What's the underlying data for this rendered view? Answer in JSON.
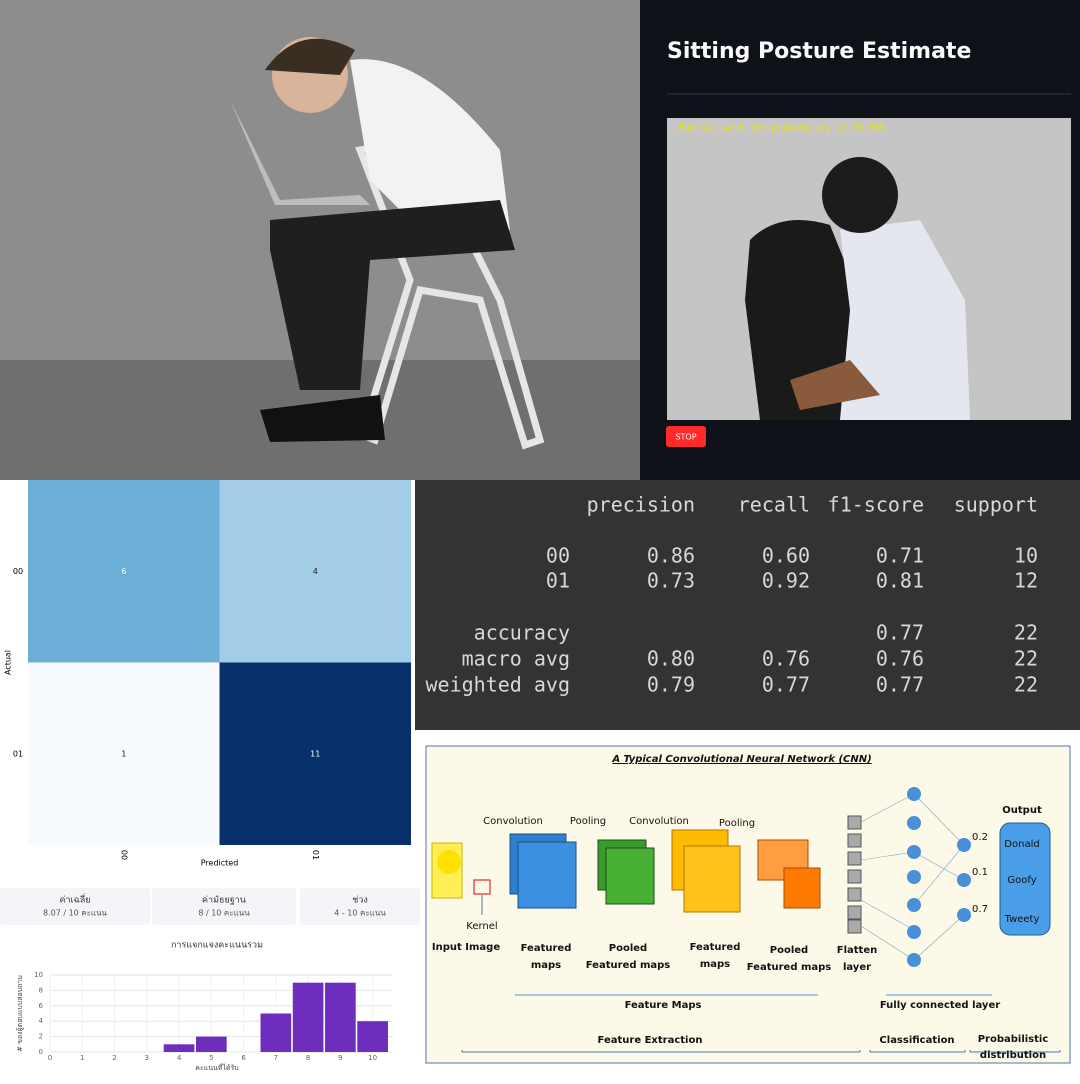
{
  "app": {
    "title": "Sitting Posture Estimate",
    "overlay_text": "Bad sit with the probability of 78.53%",
    "button": "STOP"
  },
  "chart_data": [
    {
      "type": "heatmap",
      "x_label": "Predicted",
      "y_label": "Actual",
      "x_categories": [
        "00",
        "01"
      ],
      "y_categories": [
        "00",
        "01"
      ],
      "values": [
        [
          6,
          4
        ],
        [
          1,
          11
        ]
      ],
      "colormap": [
        "#f7fbff",
        "#6baed6",
        "#08306b"
      ]
    },
    {
      "type": "bar",
      "title": "การแจกแจงคะแนนรวม",
      "x_label": "คะแนนที่ได้รับ",
      "y_label": "# ของผู้ตอบแบบสอบถาม",
      "x": [
        4,
        5,
        7,
        8,
        9,
        10
      ],
      "values": [
        1,
        2,
        5,
        9,
        9,
        4
      ],
      "color": "#6f2dbd",
      "xlim": [
        0,
        10.6
      ],
      "xticks": [
        0,
        1,
        2,
        3,
        4,
        5,
        6,
        7,
        8,
        9,
        10
      ],
      "ylim": [
        0,
        10
      ],
      "yticks": [
        0,
        2,
        4,
        6,
        8,
        10
      ],
      "grid": true
    }
  ],
  "stats": [
    {
      "label": "ค่าเฉลี่ย",
      "value": "8.07 / 10 คะแนน"
    },
    {
      "label": "ค่ามัธยฐาน",
      "value": "8 / 10 คะแนน"
    },
    {
      "label": "ช่วง",
      "value": "4 - 10 คะแนน"
    }
  ],
  "report": {
    "header": [
      "precision",
      "recall",
      "f1-score",
      "support"
    ],
    "rows": [
      [
        "00",
        "0.86",
        "0.60",
        "0.71",
        "10"
      ],
      [
        "01",
        "0.73",
        "0.92",
        "0.81",
        "12"
      ],
      [
        "accuracy",
        "",
        "",
        "0.77",
        "22"
      ],
      [
        "macro avg",
        "0.80",
        "0.76",
        "0.76",
        "22"
      ],
      [
        "weighted avg",
        "0.79",
        "0.77",
        "0.77",
        "22"
      ]
    ]
  },
  "cnn": {
    "title": "A Typical Convolutional Neural Network (CNN)",
    "conv1": "Convolution",
    "pool1": "Pooling",
    "conv2": "Convolution",
    "pool2": "Pooling",
    "output": "Output",
    "kernel": "Kernel",
    "input": "Input Image",
    "featured1": [
      "Featured",
      "maps"
    ],
    "pooled1": [
      "Pooled",
      "Featured maps"
    ],
    "featured2": [
      "Featured",
      "maps"
    ],
    "pooled2": [
      "Pooled",
      "Featured maps"
    ],
    "flatten": [
      "Flatten",
      "layer"
    ],
    "classes": [
      "Donald",
      "Goofy",
      "Tweety"
    ],
    "probs": [
      "0.2",
      "0.1",
      "0.7"
    ],
    "feature_maps": "Feature Maps",
    "fully_connected": "Fully connected layer",
    "extraction": "Feature Extraction",
    "classification": "Classification",
    "probabilistic": [
      "Probabilistic",
      "distribution"
    ]
  }
}
